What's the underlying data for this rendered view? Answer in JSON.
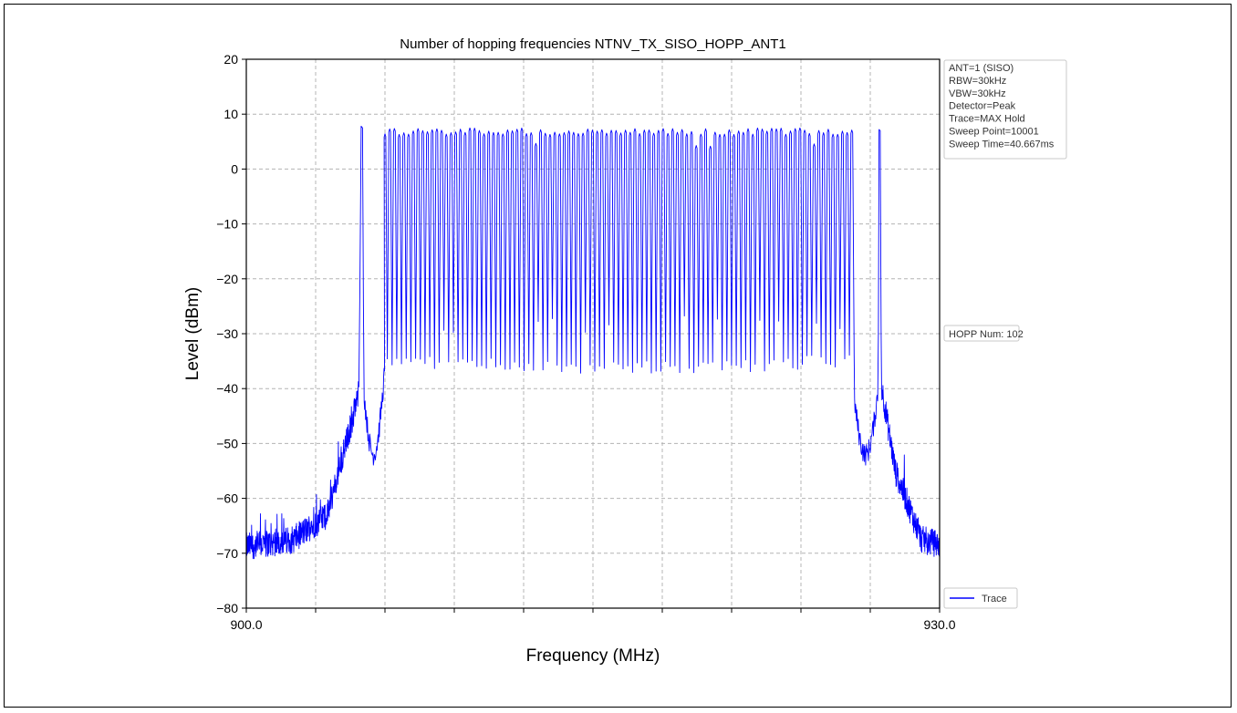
{
  "chart_data": {
    "type": "line",
    "title": "Number of hopping frequencies NTNV_TX_SISO_HOPP_ANT1",
    "xlabel": "Frequency (MHz)",
    "ylabel": "Level (dBm)",
    "xlim": [
      900.0,
      930.0
    ],
    "ylim": [
      -80,
      20
    ],
    "x_tick_labels": [
      "900.0",
      "930.0"
    ],
    "y_ticks": [
      20,
      10,
      0,
      -10,
      -20,
      -30,
      -40,
      -50,
      -60,
      -70,
      -80
    ],
    "grid": true,
    "legend": {
      "placement": "lower-right-outside",
      "entries": [
        "Trace"
      ]
    },
    "series": [
      {
        "name": "Trace",
        "color": "#0000ff",
        "hopping_channels": {
          "isolated_first_peak_mhz": 905.0,
          "isolated_last_peak_mhz": 927.4,
          "band_start_mhz": 906.0,
          "band_end_mhz": 926.2,
          "peak_level_dbm": 7.5,
          "trough_level_dbm": -33
        },
        "envelope": {
          "x": [
            900.0,
            902.0,
            903.5,
            904.4,
            905.0,
            905.5,
            905.9,
            906.0,
            926.2,
            926.6,
            927.1,
            927.4,
            928.0,
            929.0,
            930.0
          ],
          "y": [
            -69.5,
            -67.5,
            -62,
            -52,
            -38,
            -40,
            -52,
            -35,
            -35,
            -45,
            -60,
            -40,
            -62,
            -68,
            -69
          ]
        }
      }
    ],
    "annotations": [
      {
        "lines": [
          "ANT=1 (SISO)",
          "RBW=30kHz",
          "VBW=30kHz",
          "Detector=Peak",
          "Trace=MAX Hold",
          "Sweep Point=10001",
          "Sweep Time=40.667ms"
        ]
      },
      {
        "lines": [
          "HOPP Num: 102"
        ]
      }
    ]
  }
}
